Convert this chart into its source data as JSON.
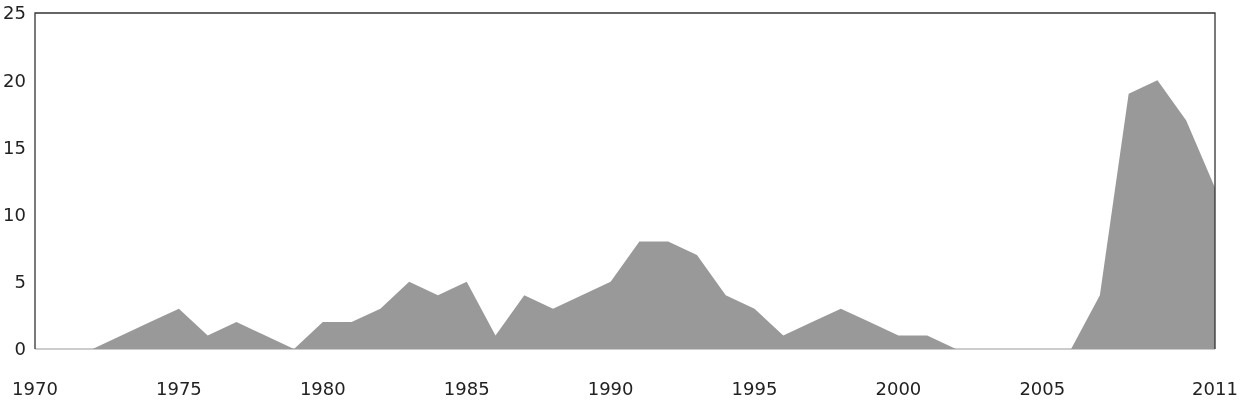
{
  "chart_data": {
    "type": "area",
    "x": [
      1970,
      1971,
      1972,
      1973,
      1974,
      1975,
      1976,
      1977,
      1978,
      1979,
      1980,
      1981,
      1982,
      1983,
      1984,
      1985,
      1986,
      1987,
      1988,
      1989,
      1990,
      1991,
      1992,
      1993,
      1994,
      1995,
      1996,
      1997,
      1998,
      1999,
      2000,
      2001,
      2002,
      2003,
      2004,
      2005,
      2006,
      2007,
      2008,
      2009,
      2010,
      2011
    ],
    "values": [
      0,
      0,
      0,
      1,
      2,
      3,
      1,
      2,
      1,
      0,
      2,
      2,
      3,
      5,
      4,
      5,
      1,
      4,
      3,
      4,
      5,
      8,
      8,
      7,
      4,
      3,
      1,
      2,
      3,
      2,
      1,
      1,
      0,
      0,
      0,
      0,
      0,
      4,
      19,
      20,
      17,
      12
    ],
    "color": "#999999",
    "xlim": [
      1970,
      2011
    ],
    "ylim": [
      0,
      25
    ],
    "xticks": [
      1970,
      1975,
      1980,
      1985,
      1990,
      1995,
      2000,
      2005,
      2011
    ],
    "yticks": [
      0,
      5,
      10,
      15,
      20,
      25
    ]
  }
}
